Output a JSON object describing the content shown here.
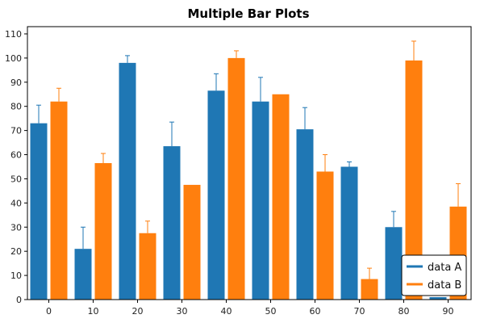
{
  "chart_data": {
    "type": "bar",
    "title": "Multiple Bar Plots",
    "xlabel": "",
    "ylabel": "",
    "categories": [
      "0",
      "10",
      "20",
      "30",
      "40",
      "50",
      "60",
      "70",
      "80",
      "90"
    ],
    "ylim": [
      0,
      113
    ],
    "yticks": [
      0,
      10,
      20,
      30,
      40,
      50,
      60,
      70,
      80,
      90,
      100,
      110
    ],
    "grid": false,
    "legend_position": "bottom-right",
    "series": [
      {
        "name": "data A",
        "color": "#1f77b4",
        "values": [
          73,
          21,
          98,
          63.5,
          86.5,
          82,
          70.5,
          55,
          30,
          1
        ],
        "errors": [
          7.5,
          9,
          3,
          10,
          7,
          10,
          9,
          2,
          6.5,
          0
        ]
      },
      {
        "name": "data B",
        "color": "#ff7f0e",
        "values": [
          82,
          56.5,
          27.5,
          47.5,
          100,
          85,
          53,
          8.5,
          99,
          38.5
        ],
        "errors": [
          5.5,
          4,
          5,
          0,
          3,
          0,
          7,
          4.5,
          8,
          9.5
        ]
      }
    ]
  }
}
